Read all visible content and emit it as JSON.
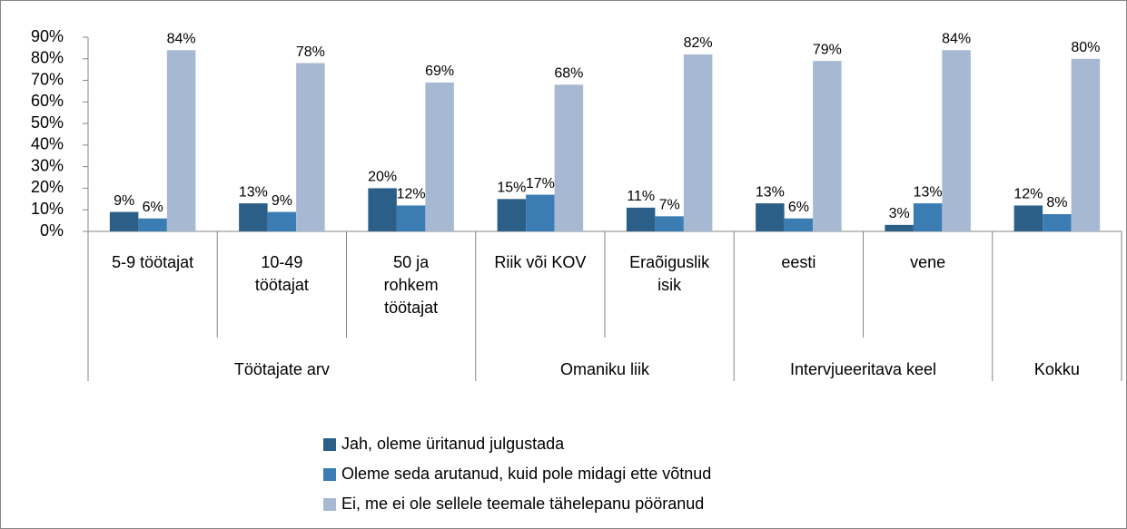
{
  "chart_data": {
    "type": "bar",
    "categories": [
      "5-9 töötajat",
      "10-49\ntöötajat",
      "50 ja\nrohkem\ntöötajat",
      "Riik või KOV",
      "Eraõiguslik\nisik",
      "eesti",
      "vene",
      null
    ],
    "category_groups": [
      "Töötajate arv",
      "Töötajate arv",
      "Töötajate arv",
      "Omaniku liik",
      "Omaniku liik",
      "Intervjueeritava keel",
      "Intervjueeritava keel",
      "Kokku"
    ],
    "series": [
      {
        "name": "Jah, oleme üritanud julgustada",
        "color": "#2c5f87",
        "values": [
          9,
          13,
          20,
          15,
          11,
          13,
          3,
          12
        ],
        "value_labels": [
          "9%",
          "13%",
          "20%",
          "15%",
          "11%",
          "13%",
          "3%",
          "12%"
        ]
      },
      {
        "name": "Oleme seda arutanud, kuid pole midagi ette võtnud",
        "color": "#3b7db3",
        "values": [
          6,
          9,
          12,
          17,
          7,
          6,
          13,
          8
        ],
        "value_labels": [
          "6%",
          "9%",
          "12%",
          "17%",
          "7%",
          "6%",
          "13%",
          "8%"
        ]
      },
      {
        "name": "Ei, me ei ole sellele teemale tähelepanu pööranud",
        "color": "#a7b9d2",
        "values": [
          84,
          78,
          69,
          68,
          82,
          79,
          84,
          80
        ],
        "value_labels": [
          "84%",
          "78%",
          "69%",
          "68%",
          "82%",
          "79%",
          "84%",
          "80%"
        ]
      }
    ],
    "ylim": [
      0,
      90
    ],
    "yticks": [
      {
        "value": 0,
        "label": "0%"
      },
      {
        "value": 10,
        "label": "10%"
      },
      {
        "value": 20,
        "label": "20%"
      },
      {
        "value": 30,
        "label": "30%"
      },
      {
        "value": 40,
        "label": "40%"
      },
      {
        "value": 50,
        "label": "50%"
      },
      {
        "value": 60,
        "label": "60%"
      },
      {
        "value": 70,
        "label": "70%"
      },
      {
        "value": 80,
        "label": "80%"
      },
      {
        "value": 90,
        "label": "90%"
      }
    ],
    "grid": false,
    "legend": "bottom"
  }
}
